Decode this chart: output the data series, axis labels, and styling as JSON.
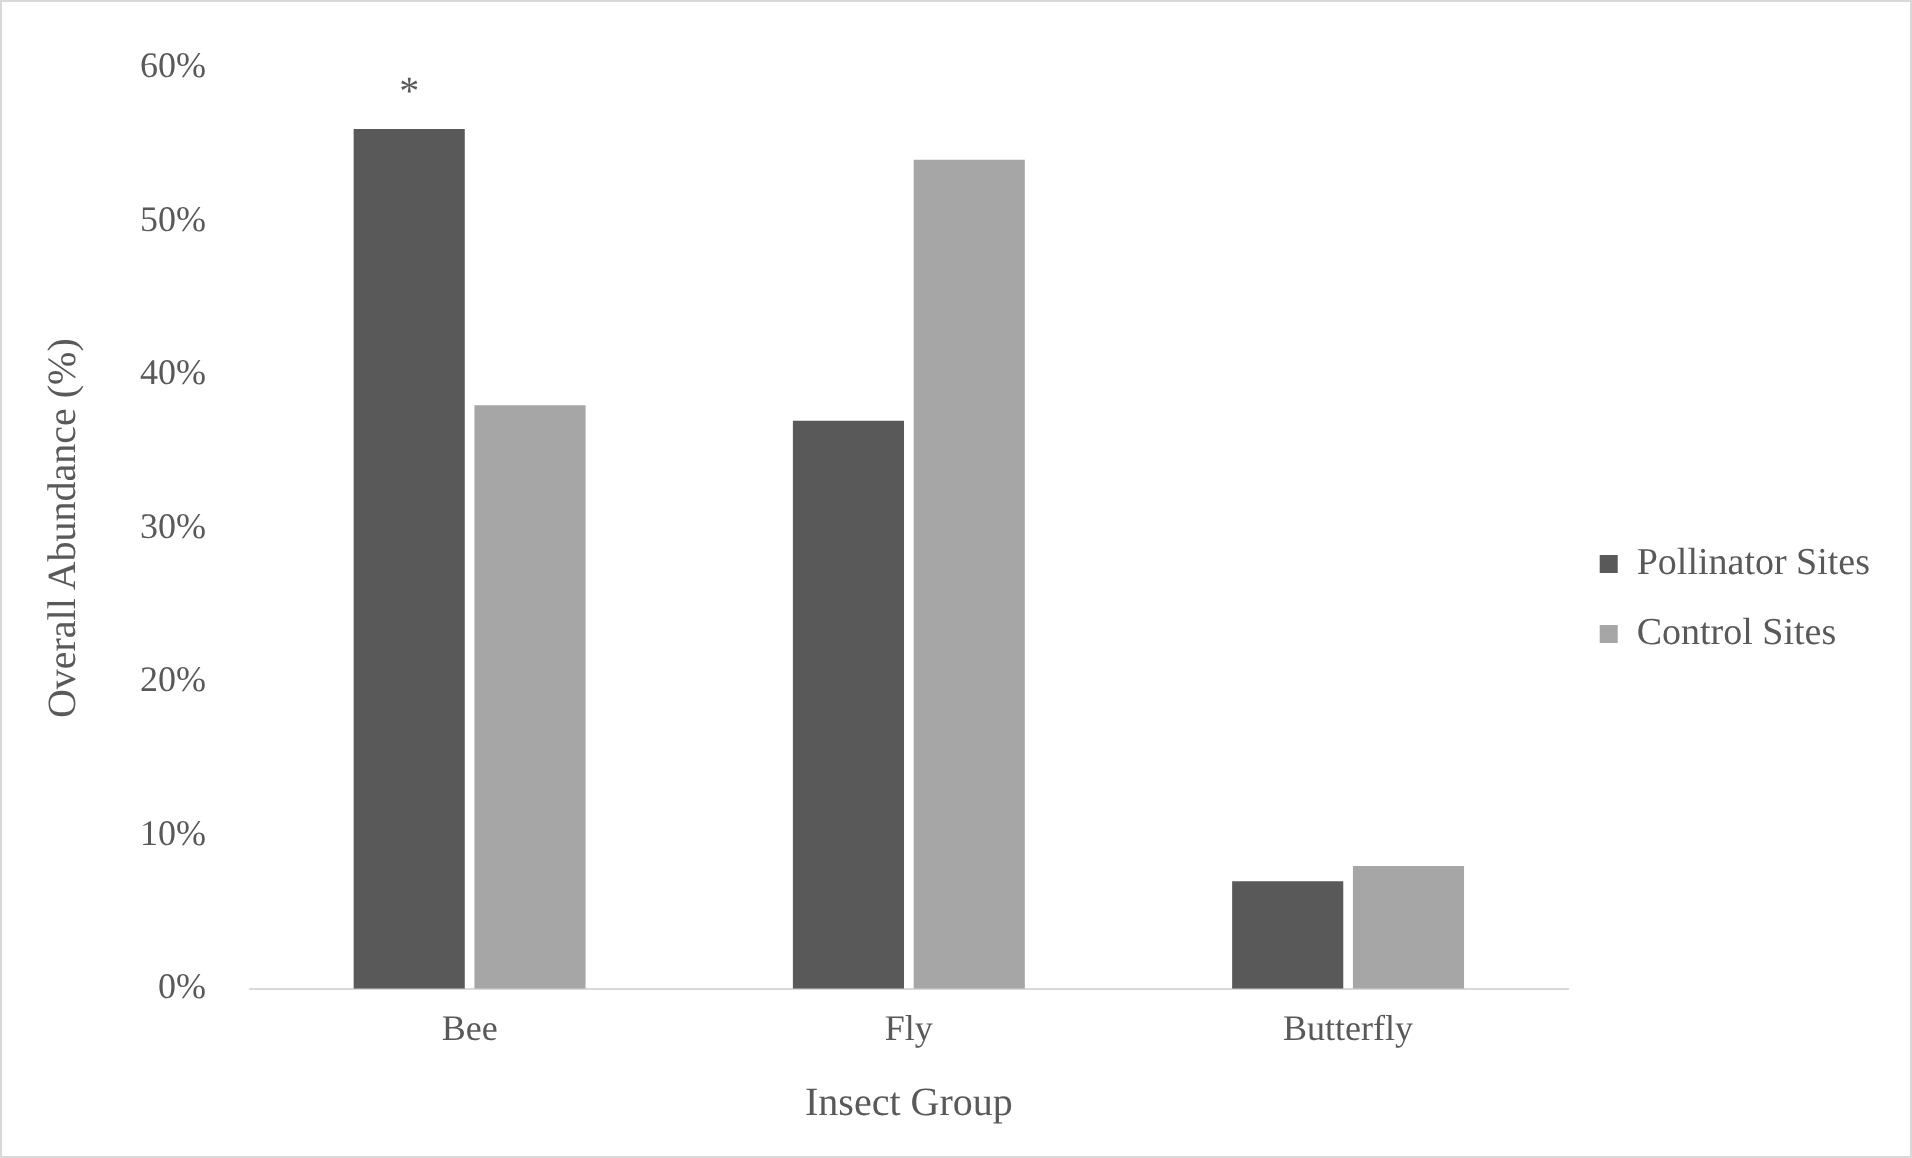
{
  "chart_data": {
    "type": "bar",
    "xlabel": "Insect Group",
    "ylabel": "Overall Abundance (%)",
    "categories": [
      "Bee",
      "Fly",
      "Butterfly"
    ],
    "series": [
      {
        "name": "Pollinator Sites",
        "color": "#595959",
        "values": [
          56,
          37,
          7
        ]
      },
      {
        "name": "Control Sites",
        "color": "#a6a6a6",
        "values": [
          38,
          54,
          8
        ]
      }
    ],
    "ylim": [
      0,
      60
    ],
    "yticks": [
      {
        "value": 0,
        "label": "0%"
      },
      {
        "value": 10,
        "label": "10%"
      },
      {
        "value": 20,
        "label": "20%"
      },
      {
        "value": 30,
        "label": "30%"
      },
      {
        "value": 40,
        "label": "40%"
      },
      {
        "value": 50,
        "label": "50%"
      },
      {
        "value": 60,
        "label": "60%"
      }
    ],
    "annotations": [
      {
        "text": "*",
        "x": "Bee",
        "y": 56
      }
    ],
    "grid": false,
    "legend": "right"
  }
}
